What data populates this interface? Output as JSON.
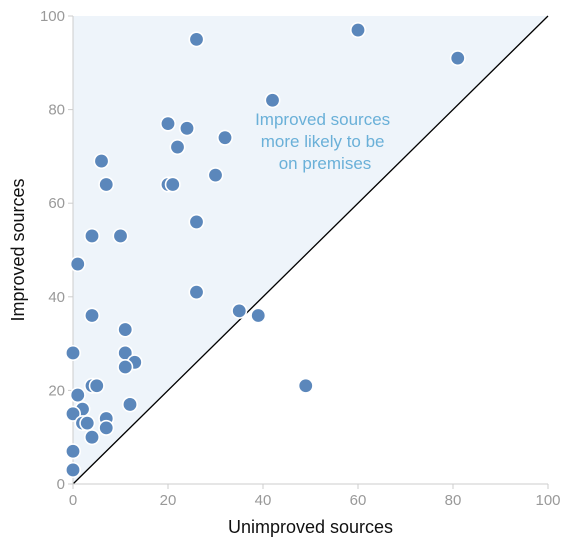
{
  "chart_data": {
    "type": "scatter",
    "xlabel": "Unimproved sources",
    "ylabel": "Improved sources",
    "xlim": [
      0,
      100
    ],
    "ylim": [
      0,
      100
    ],
    "xticks": [
      0,
      20,
      40,
      60,
      80,
      100
    ],
    "yticks": [
      0,
      20,
      40,
      60,
      80,
      100
    ],
    "grid": false,
    "reference_line": "y = x",
    "shaded_region": "above y = x",
    "annotation": [
      "Improved sources",
      "more likely to be",
      "on premises"
    ],
    "colors": {
      "points": "#5b87bb",
      "shade": "#eef4fa",
      "annotation": "#6ab0d8",
      "axis": "#cccccc",
      "diagonal": "#000000"
    },
    "points": [
      {
        "x": 60,
        "y": 97
      },
      {
        "x": 81,
        "y": 91
      },
      {
        "x": 26,
        "y": 95
      },
      {
        "x": 42,
        "y": 82
      },
      {
        "x": 20,
        "y": 77
      },
      {
        "x": 24,
        "y": 76
      },
      {
        "x": 32,
        "y": 74
      },
      {
        "x": 22,
        "y": 72
      },
      {
        "x": 6,
        "y": 69
      },
      {
        "x": 30,
        "y": 66
      },
      {
        "x": 7,
        "y": 64
      },
      {
        "x": 20,
        "y": 64
      },
      {
        "x": 21,
        "y": 64
      },
      {
        "x": 26,
        "y": 56
      },
      {
        "x": 4,
        "y": 53
      },
      {
        "x": 10,
        "y": 53
      },
      {
        "x": 1,
        "y": 47
      },
      {
        "x": 26,
        "y": 41
      },
      {
        "x": 35,
        "y": 37
      },
      {
        "x": 39,
        "y": 36
      },
      {
        "x": 4,
        "y": 36
      },
      {
        "x": 11,
        "y": 33
      },
      {
        "x": 0,
        "y": 28
      },
      {
        "x": 11,
        "y": 28
      },
      {
        "x": 13,
        "y": 26
      },
      {
        "x": 11,
        "y": 25
      },
      {
        "x": 49,
        "y": 21
      },
      {
        "x": 4,
        "y": 21
      },
      {
        "x": 5,
        "y": 21
      },
      {
        "x": 1,
        "y": 19
      },
      {
        "x": 12,
        "y": 17
      },
      {
        "x": 2,
        "y": 16
      },
      {
        "x": 0,
        "y": 15
      },
      {
        "x": 7,
        "y": 14
      },
      {
        "x": 2,
        "y": 13
      },
      {
        "x": 3,
        "y": 13
      },
      {
        "x": 7,
        "y": 12
      },
      {
        "x": 4,
        "y": 10
      },
      {
        "x": 0,
        "y": 7
      },
      {
        "x": 0,
        "y": 3
      }
    ]
  }
}
